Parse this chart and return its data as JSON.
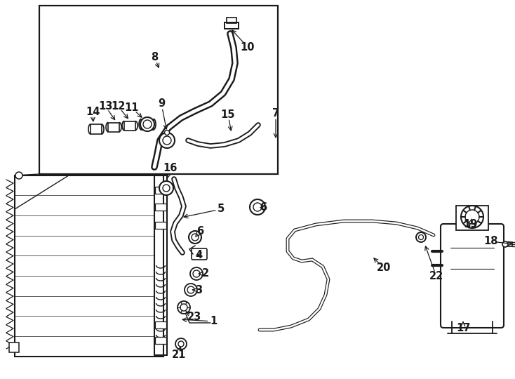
{
  "bg": "#ffffff",
  "lc": "#1a1a1a",
  "fs": 10.5,
  "figsize": [
    7.34,
    5.4
  ],
  "dpi": 100
}
